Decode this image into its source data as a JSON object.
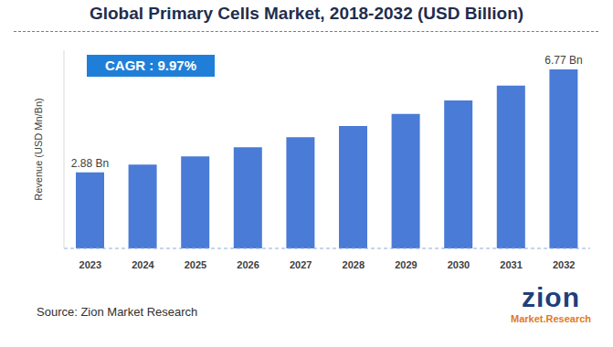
{
  "chart_data": {
    "type": "bar",
    "title": "Global Primary Cells Market, 2018-2032 (USD Billion)",
    "annotation": "CAGR : 9.97%",
    "y_label": "Revenue (USD Mn/Bn)",
    "source": "Source: Zion Market Research",
    "logo": [
      "zion",
      "Market.Research"
    ],
    "categories": [
      "2023",
      "2024",
      "2025",
      "2026",
      "2027",
      "2028",
      "2029",
      "2030",
      "2031",
      "2032"
    ],
    "values": [
      2.88,
      3.17,
      3.48,
      3.83,
      4.21,
      4.63,
      5.09,
      5.6,
      6.16,
      6.77
    ],
    "value_labels": [
      "2.88 Bn",
      null,
      null,
      null,
      null,
      null,
      null,
      null,
      null,
      "6.77 Bn"
    ],
    "data_labels": true,
    "color": "#4a7bd6",
    "ylim": [
      0,
      7.5
    ],
    "grid": false,
    "tick_labels": "x"
  }
}
